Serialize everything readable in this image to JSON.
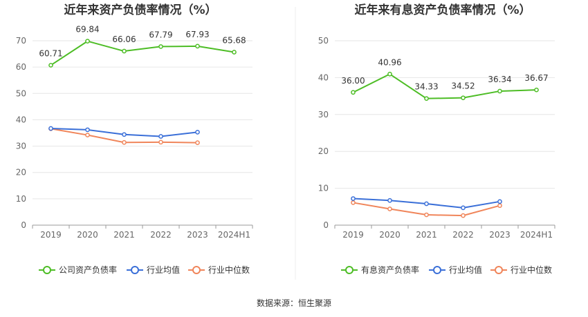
{
  "colors": {
    "company": "#4dbd25",
    "industry_avg": "#3a6fd8",
    "industry_median": "#f0855a",
    "grid": "#e6e6e6",
    "axis": "#999999"
  },
  "legend_icon": "circle-line-icon",
  "source_text": "数据来源：恒生聚源",
  "chart_data": [
    {
      "type": "line",
      "title": "近年来资产负债率情况（%）",
      "xlabel": "",
      "ylabel": "",
      "categories": [
        "2019",
        "2020",
        "2021",
        "2022",
        "2023",
        "2024H1"
      ],
      "ylim": [
        0,
        70
      ],
      "yticks": [
        0,
        10,
        20,
        30,
        40,
        50,
        60,
        70
      ],
      "grid": true,
      "legend_position": "bottom",
      "series": [
        {
          "name": "公司资产负债率",
          "key": "company",
          "show_labels": true,
          "values": [
            60.71,
            69.84,
            66.06,
            67.79,
            67.93,
            65.68
          ],
          "labels": [
            "60.71",
            "69.84",
            "66.06",
            "67.79",
            "67.93",
            "65.68"
          ]
        },
        {
          "name": "行业均值",
          "key": "industry_avg",
          "show_labels": false,
          "values": [
            36.7,
            36.2,
            34.4,
            33.7,
            35.3,
            null
          ]
        },
        {
          "name": "行业中位数",
          "key": "industry_median",
          "show_labels": false,
          "values": [
            36.6,
            34.2,
            31.4,
            31.5,
            31.3,
            null
          ]
        }
      ]
    },
    {
      "type": "line",
      "title": "近年来有息资产负债率情况（%）",
      "xlabel": "",
      "ylabel": "",
      "categories": [
        "2019",
        "2020",
        "2021",
        "2022",
        "2023",
        "2024H1"
      ],
      "ylim": [
        0,
        50
      ],
      "yticks": [
        0,
        10,
        20,
        30,
        40,
        50
      ],
      "grid": true,
      "legend_position": "bottom",
      "series": [
        {
          "name": "有息资产负债率",
          "key": "company",
          "show_labels": true,
          "values": [
            36.0,
            40.96,
            34.33,
            34.52,
            36.34,
            36.67
          ],
          "labels": [
            "36.00",
            "40.96",
            "34.33",
            "34.52",
            "36.34",
            "36.67"
          ]
        },
        {
          "name": "行业均值",
          "key": "industry_avg",
          "show_labels": false,
          "values": [
            7.2,
            6.7,
            5.8,
            4.7,
            6.4,
            null
          ]
        },
        {
          "name": "行业中位数",
          "key": "industry_median",
          "show_labels": false,
          "values": [
            6.1,
            4.4,
            2.8,
            2.6,
            5.3,
            null
          ]
        }
      ]
    }
  ]
}
